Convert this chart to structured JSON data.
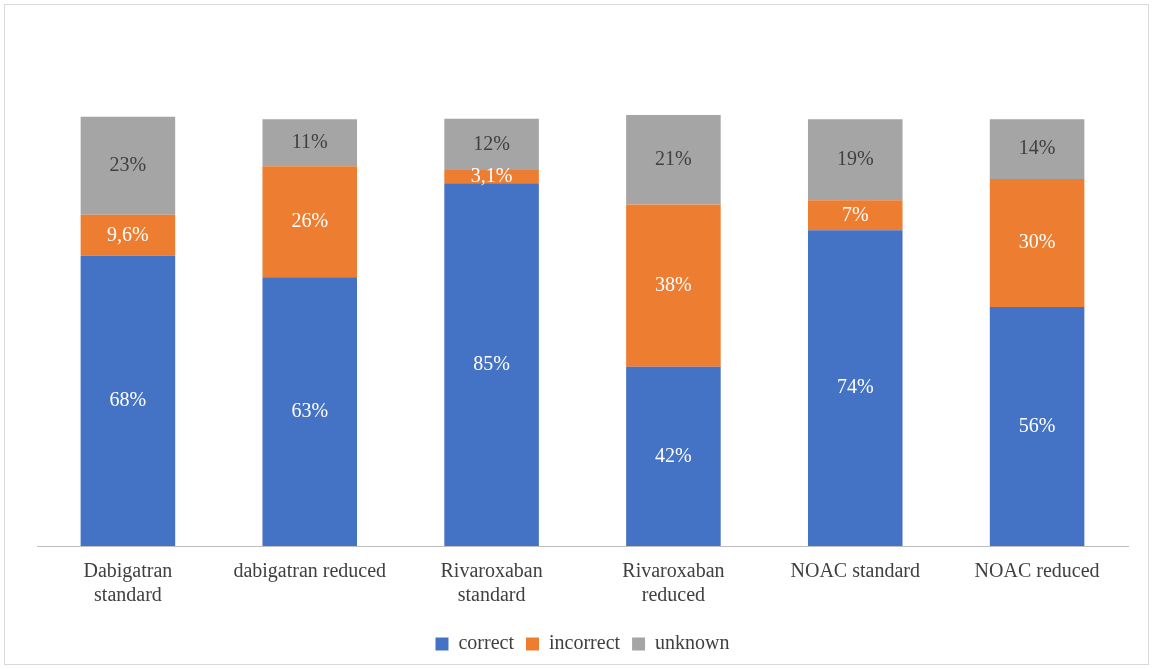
{
  "chart_data": {
    "type": "bar",
    "stacked": true,
    "categories": [
      "Dabigatran standard",
      "dabigatran reduced",
      "Rivaroxaban standard",
      "Rivaroxaban reduced",
      "NOAC standard",
      "NOAC reduced"
    ],
    "series": [
      {
        "name": "correct",
        "color": "#4472c4",
        "values": [
          68,
          63,
          85,
          42,
          74,
          56
        ],
        "value_labels": [
          "68%",
          "63%",
          "85%",
          "42%",
          "74%",
          "56%"
        ]
      },
      {
        "name": "incorrect",
        "color": "#ed7d31",
        "values": [
          9.6,
          26,
          3.1,
          38,
          7,
          30
        ],
        "value_labels": [
          "9,6%",
          "26%",
          "3,1%",
          "38%",
          "7%",
          "30%"
        ]
      },
      {
        "name": "unknown",
        "color": "#a5a5a5",
        "values": [
          23,
          11,
          12,
          21,
          19,
          14
        ],
        "value_labels": [
          "23%",
          "11%",
          "12%",
          "21%",
          "19%",
          "14%"
        ]
      }
    ],
    "legend": "bottom",
    "grid": false,
    "tick_labels": "x"
  }
}
